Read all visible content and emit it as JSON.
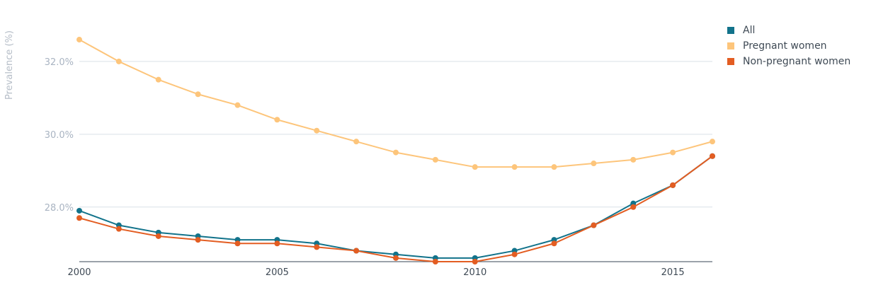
{
  "chart_data": {
    "type": "line",
    "ylabel": "Prevalence (%)",
    "xlim": [
      2000,
      2016
    ],
    "ylim": [
      26.5,
      33.3
    ],
    "yticks": [
      28.0,
      30.0,
      32.0
    ],
    "ytick_labels": [
      "28.0%",
      "30.0%",
      "32.0%"
    ],
    "xticks": [
      2000,
      2005,
      2010,
      2015
    ],
    "xtick_labels": [
      "2000",
      "2005",
      "2010",
      "2015"
    ],
    "grid": true,
    "legend_position": "top-right",
    "x": [
      2000,
      2001,
      2002,
      2003,
      2004,
      2005,
      2006,
      2007,
      2008,
      2009,
      2010,
      2011,
      2012,
      2013,
      2014,
      2015,
      2016
    ],
    "series": [
      {
        "name": "All",
        "color": "#12738b",
        "values": [
          27.9,
          27.5,
          27.3,
          27.2,
          27.1,
          27.1,
          27.0,
          26.8,
          26.7,
          26.6,
          26.6,
          26.8,
          27.1,
          27.5,
          28.1,
          28.6,
          29.4
        ]
      },
      {
        "name": "Pregnant women",
        "color": "#fdc57b",
        "values": [
          32.6,
          32.0,
          31.5,
          31.1,
          30.8,
          30.4,
          30.1,
          29.8,
          29.5,
          29.3,
          29.1,
          29.1,
          29.1,
          29.2,
          29.3,
          29.5,
          29.8
        ]
      },
      {
        "name": "Non-pregnant women",
        "color": "#e35d22",
        "values": [
          27.7,
          27.4,
          27.2,
          27.1,
          27.0,
          27.0,
          26.9,
          26.8,
          26.6,
          26.5,
          26.5,
          26.7,
          27.0,
          27.5,
          28.0,
          28.6,
          29.4
        ]
      }
    ]
  }
}
